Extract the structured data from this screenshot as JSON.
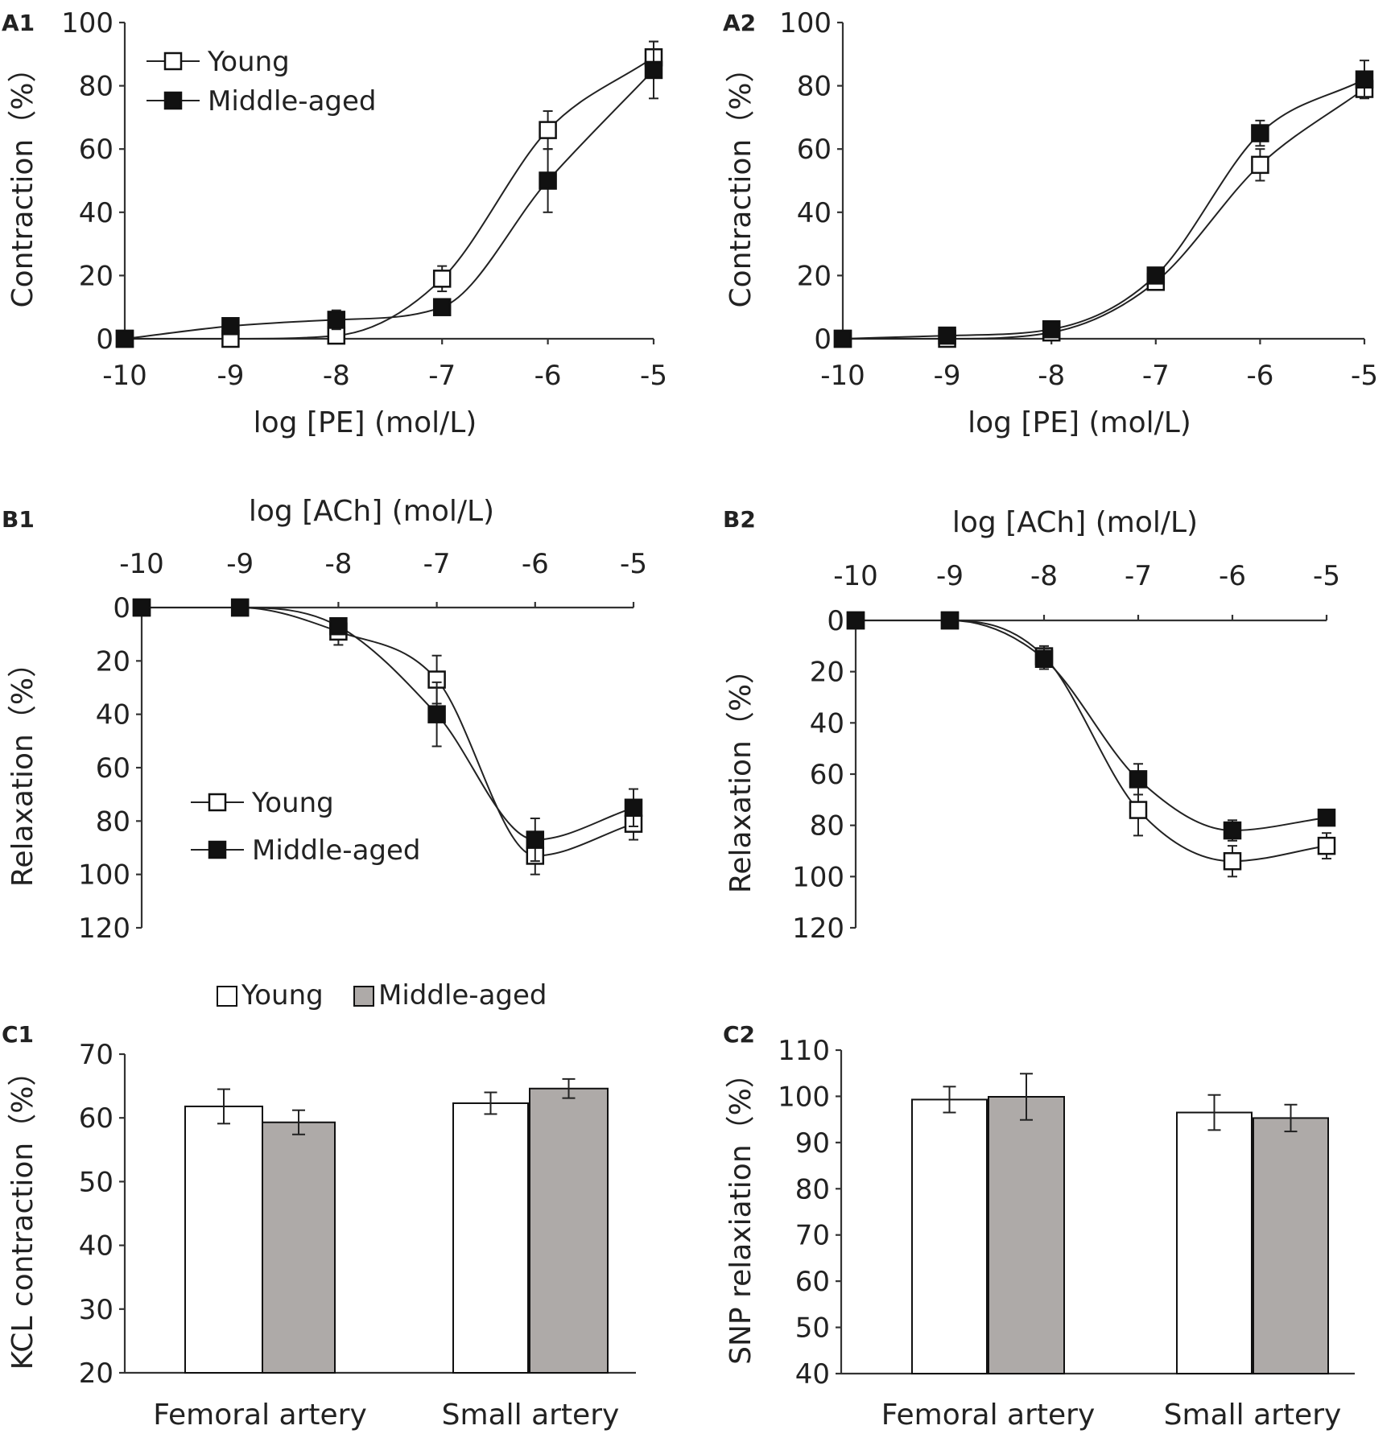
{
  "figure": {
    "colors": {
      "young": "#ffffff",
      "middle": "#111111",
      "bar_middle": "#aeaaa8",
      "axis": "#333333",
      "text": "#222222"
    }
  },
  "chart_data": [
    {
      "id": "A1",
      "panel_label": "A1",
      "type": "line",
      "xlabel": "log [PE] (mol/L)",
      "ylabel": "Contraction（%）",
      "x_ticks": [
        "-10",
        "-9",
        "-8",
        "-7",
        "-6",
        "-5"
      ],
      "y_ticks": [
        "0",
        "20",
        "40",
        "60",
        "80",
        "100"
      ],
      "xlim": [
        -10,
        -5
      ],
      "ylim": [
        0,
        100
      ],
      "y_inverted": false,
      "x_axis_position": "bottom",
      "legend": {
        "position": "top-left",
        "entries": [
          "Young",
          "Middle-aged"
        ]
      },
      "series": [
        {
          "name": "Young",
          "marker": "open-square",
          "x": [
            -10,
            -9,
            -8,
            -7,
            -6,
            -5
          ],
          "y": [
            0,
            0,
            1,
            19,
            66,
            89
          ],
          "err": [
            0,
            0,
            2,
            4,
            6,
            5
          ]
        },
        {
          "name": "Middle-aged",
          "marker": "filled-square",
          "x": [
            -10,
            -9,
            -8,
            -7,
            -6,
            -5
          ],
          "y": [
            0,
            4,
            6,
            10,
            50,
            85
          ],
          "err": [
            0,
            1,
            3,
            2,
            10,
            9
          ]
        }
      ]
    },
    {
      "id": "A2",
      "panel_label": "A2",
      "type": "line",
      "xlabel": "log [PE] (mol/L)",
      "ylabel": "Contraction（%）",
      "x_ticks": [
        "-10",
        "-9",
        "-8",
        "-7",
        "-6",
        "-5"
      ],
      "y_ticks": [
        "0",
        "20",
        "40",
        "60",
        "80",
        "100"
      ],
      "xlim": [
        -10,
        -5
      ],
      "ylim": [
        0,
        100
      ],
      "y_inverted": false,
      "x_axis_position": "bottom",
      "series": [
        {
          "name": "Young",
          "marker": "open-square",
          "x": [
            -10,
            -9,
            -8,
            -7,
            -6,
            -5
          ],
          "y": [
            0,
            0,
            2,
            18,
            55,
            79
          ],
          "err": [
            0,
            0,
            1,
            2,
            5,
            2
          ]
        },
        {
          "name": "Middle-aged",
          "marker": "filled-square",
          "x": [
            -10,
            -9,
            -8,
            -7,
            -6,
            -5
          ],
          "y": [
            0,
            1,
            3,
            20,
            65,
            82
          ],
          "err": [
            0,
            1,
            1,
            2,
            4,
            6
          ]
        }
      ]
    },
    {
      "id": "B1",
      "panel_label": "B1",
      "type": "line",
      "xlabel": "log [ACh] (mol/L)",
      "ylabel": "Relaxation（%）",
      "x_ticks": [
        "-10",
        "-9",
        "-8",
        "-7",
        "-6",
        "-5"
      ],
      "y_ticks": [
        "0",
        "20",
        "40",
        "60",
        "80",
        "100",
        "120"
      ],
      "xlim": [
        -10,
        -5
      ],
      "ylim": [
        0,
        120
      ],
      "y_inverted": true,
      "x_axis_position": "top",
      "legend": {
        "position": "bottom-left",
        "entries": [
          "Young",
          "Middle-aged"
        ]
      },
      "series": [
        {
          "name": "Young",
          "marker": "open-square",
          "x": [
            -10,
            -9,
            -8,
            -7,
            -6,
            -5
          ],
          "y": [
            0,
            0,
            9,
            27,
            93,
            81
          ],
          "err": [
            0,
            0,
            5,
            9,
            7,
            6
          ]
        },
        {
          "name": "Middle-aged",
          "marker": "filled-square",
          "x": [
            -10,
            -9,
            -8,
            -7,
            -6,
            -5
          ],
          "y": [
            0,
            0,
            7,
            40,
            87,
            75
          ],
          "err": [
            0,
            0,
            2,
            12,
            8,
            7
          ]
        }
      ]
    },
    {
      "id": "B2",
      "panel_label": "B2",
      "type": "line",
      "xlabel": "log [ACh] (mol/L)",
      "ylabel": "Relaxation（%）",
      "x_ticks": [
        "-10",
        "-9",
        "-8",
        "-7",
        "-6",
        "-5"
      ],
      "y_ticks": [
        "0",
        "20",
        "40",
        "60",
        "80",
        "100",
        "120"
      ],
      "xlim": [
        -10,
        -5
      ],
      "ylim": [
        0,
        120
      ],
      "y_inverted": true,
      "x_axis_position": "top",
      "series": [
        {
          "name": "Young",
          "marker": "open-square",
          "x": [
            -10,
            -9,
            -8,
            -7,
            -6,
            -5
          ],
          "y": [
            0,
            0,
            14,
            74,
            94,
            88
          ],
          "err": [
            0,
            0,
            4,
            10,
            6,
            5
          ]
        },
        {
          "name": "Middle-aged",
          "marker": "filled-square",
          "x": [
            -10,
            -9,
            -8,
            -7,
            -6,
            -5
          ],
          "y": [
            0,
            0,
            15,
            62,
            82,
            77
          ],
          "err": [
            0,
            0,
            4,
            6,
            4,
            2
          ]
        }
      ]
    },
    {
      "id": "C1",
      "panel_label": "C1",
      "type": "bar",
      "xlabel": "",
      "ylabel": "KCL contraction（%）",
      "categories": [
        "Femoral artery",
        "Small artery"
      ],
      "y_ticks": [
        "20",
        "30",
        "40",
        "50",
        "60",
        "70"
      ],
      "ylim": [
        20,
        70
      ],
      "legend": {
        "position": "top-center",
        "entries": [
          "Young",
          "Middle-aged"
        ]
      },
      "series": [
        {
          "name": "Young",
          "values": [
            61.8,
            62.3
          ],
          "err": [
            2.7,
            1.7
          ]
        },
        {
          "name": "Middle-aged",
          "values": [
            59.3,
            64.6
          ],
          "err": [
            1.9,
            1.5
          ]
        }
      ]
    },
    {
      "id": "C2",
      "panel_label": "C2",
      "type": "bar",
      "xlabel": "",
      "ylabel": "SNP  relaxiation（%）",
      "categories": [
        "Femoral artery",
        "Small artery"
      ],
      "y_ticks": [
        "40",
        "50",
        "60",
        "70",
        "80",
        "90",
        "100",
        "110"
      ],
      "ylim": [
        40,
        110
      ],
      "series": [
        {
          "name": "Young",
          "values": [
            99.3,
            96.5
          ],
          "err": [
            2.8,
            3.8
          ]
        },
        {
          "name": "Middle-aged",
          "values": [
            99.9,
            95.3
          ],
          "err": [
            5.0,
            2.9
          ]
        }
      ]
    }
  ]
}
